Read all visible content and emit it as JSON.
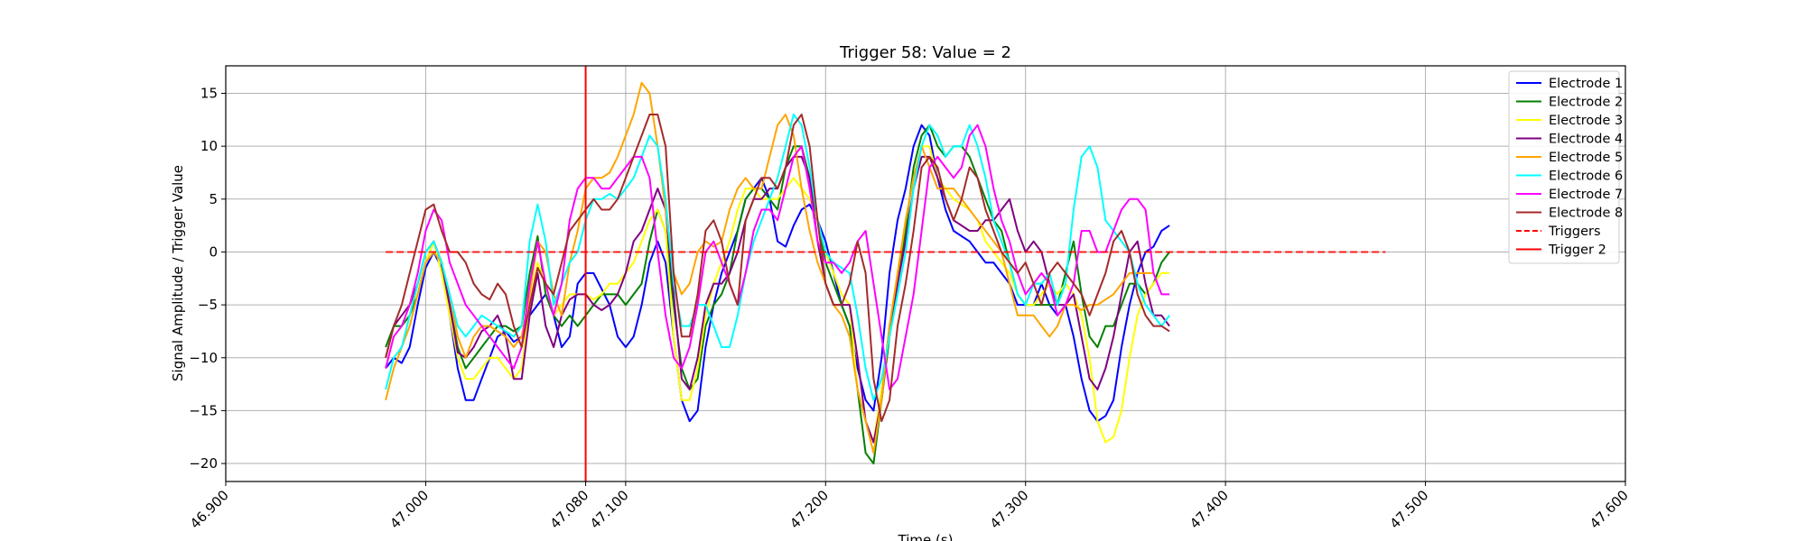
{
  "chart_data": {
    "type": "line",
    "title": "Trigger 58: Value = 2",
    "xlabel": "Time (s)",
    "ylabel": "Signal Amplitude / Trigger Value",
    "xlim": [
      46.9,
      47.6
    ],
    "ylim": [
      -21.7,
      17.6
    ],
    "x_ticks": [
      46.9,
      47.0,
      47.08,
      47.1,
      47.2,
      47.3,
      47.4,
      47.5,
      47.6
    ],
    "x_tick_labels": [
      "46.900",
      "47.000",
      "47.080",
      "47.100",
      "47.200",
      "47.300",
      "47.400",
      "47.500",
      "47.600"
    ],
    "y_ticks": [
      -20,
      -15,
      -10,
      -5,
      0,
      5,
      10,
      15
    ],
    "y_tick_labels": [
      "−20",
      "−15",
      "−10",
      "−5",
      "0",
      "5",
      "10",
      "15"
    ],
    "grid": true,
    "legend_position": "top-right",
    "x_start": 46.98,
    "x_step": 0.004,
    "series": [
      {
        "name": "Electrode 1",
        "color": "#0000ff",
        "style": "solid",
        "values": [
          -11,
          -10,
          -10.5,
          -9,
          -5,
          -1.5,
          0,
          -1.5,
          -6,
          -11,
          -14,
          -14,
          -12,
          -10,
          -8,
          -7.5,
          -8.5,
          -8,
          -6,
          -5,
          -4,
          -6,
          -9,
          -8,
          -3,
          -2,
          -2,
          -3.5,
          -5,
          -8,
          -9,
          -8,
          -5,
          -1,
          1,
          -1,
          -8,
          -14,
          -16,
          -15,
          -9,
          -5,
          -2,
          0,
          2,
          5,
          6,
          7,
          5,
          1,
          0.5,
          2.5,
          4,
          4.5,
          3,
          1,
          -2,
          -5,
          -7,
          -11,
          -14,
          -15,
          -10,
          -2,
          3,
          6,
          10,
          12,
          11,
          7,
          4,
          2,
          1.5,
          1,
          0,
          -1,
          -1,
          -2,
          -3,
          -5,
          -5,
          -5,
          -3,
          -5,
          -6,
          -5,
          -8,
          -12,
          -15,
          -16,
          -15.5,
          -14,
          -9,
          -5,
          -2,
          0,
          0.5,
          2,
          2.5
        ]
      },
      {
        "name": "Electrode 2",
        "color": "#008000",
        "style": "solid",
        "values": [
          -9,
          -7,
          -7,
          -6,
          -4,
          -1,
          1,
          -1,
          -5,
          -9,
          -11,
          -10,
          -9,
          -8,
          -7,
          -7,
          -7.5,
          -7,
          -2,
          1.5,
          -4,
          -6,
          -7,
          -6,
          -7,
          -6,
          -5,
          -4,
          -4,
          -4,
          -5,
          -4,
          -3,
          1,
          4,
          2,
          -5,
          -11,
          -13,
          -12,
          -7,
          -5,
          -4,
          -2,
          2,
          5,
          6,
          6,
          5,
          4,
          8,
          10,
          10,
          7,
          3,
          -1,
          -3,
          -5,
          -7,
          -13,
          -19,
          -20,
          -14,
          -8,
          -3,
          2,
          8,
          11,
          12,
          10,
          9,
          10,
          10,
          9,
          7,
          5,
          3,
          2,
          -1,
          -4,
          -5,
          -5,
          -5,
          -5,
          -5,
          -2,
          1,
          -4,
          -8,
          -9,
          -7,
          -7,
          -5,
          -3,
          -3,
          -4,
          -3,
          -1,
          0
        ]
      },
      {
        "name": "Electrode 3",
        "color": "#ffff00",
        "style": "solid",
        "values": [
          -11,
          -8,
          -7,
          -5,
          -4,
          -1,
          1,
          -2,
          -6,
          -10,
          -12,
          -12,
          -11,
          -10,
          -10,
          -11,
          -12,
          -11,
          -5,
          -1,
          -3,
          -6,
          -5,
          -4,
          -4,
          -4,
          -4.5,
          -4,
          -3,
          -3,
          -2,
          -1,
          1,
          3,
          4,
          2,
          -8,
          -14,
          -14,
          -11,
          -6,
          -3,
          -1,
          1,
          4,
          6,
          6,
          5,
          5,
          5,
          6,
          7,
          6,
          5,
          3,
          0,
          -2,
          -4,
          -5,
          -13,
          -16,
          -18,
          -13,
          -7,
          -2,
          3,
          7,
          10,
          10,
          7,
          6,
          5,
          4.5,
          4,
          3,
          1,
          0,
          -1,
          -2,
          -4,
          -5,
          -5,
          -4,
          -3,
          -4,
          -3,
          -4,
          -6,
          -10,
          -16,
          -18,
          -17.5,
          -15,
          -10,
          -6,
          -4,
          -3,
          -2,
          -2
        ]
      },
      {
        "name": "Electrode 4",
        "color": "#800080",
        "style": "solid",
        "values": [
          -10,
          -7,
          -6,
          -5,
          -3,
          0,
          1,
          -1,
          -5,
          -9.5,
          -10,
          -9,
          -7.5,
          -7,
          -6,
          -8,
          -12,
          -12,
          -6,
          -2,
          -7,
          -9,
          -6,
          -4.5,
          -4,
          -4,
          -5,
          -5.5,
          -5,
          -4,
          -2,
          1,
          2,
          4,
          6,
          4,
          -4,
          -12,
          -13,
          -10,
          -5,
          -3,
          -3,
          -2,
          0,
          3,
          5,
          5,
          6,
          6,
          8,
          9,
          9,
          7,
          1,
          -3,
          -5,
          -5,
          -5,
          -10,
          -16,
          -18,
          -14,
          -7,
          -3,
          1,
          6,
          9,
          9,
          7,
          5,
          3,
          2.5,
          2,
          2,
          3,
          3,
          4,
          5,
          2,
          0,
          1,
          0,
          -3,
          -5,
          -5,
          -4,
          -8,
          -12,
          -13,
          -11,
          -8,
          -4,
          0,
          1,
          -3,
          -6,
          -6,
          -7
        ]
      },
      {
        "name": "Electrode 5",
        "color": "#ffa500",
        "style": "solid",
        "values": [
          -14,
          -11,
          -9,
          -7,
          -4,
          -1,
          0,
          -1,
          -4,
          -8,
          -10,
          -8,
          -7,
          -7,
          -7.5,
          -8,
          -9,
          -8,
          -4,
          1,
          0,
          -4,
          -6,
          -1,
          2,
          6,
          7,
          7,
          7.5,
          9,
          11,
          13,
          16,
          15,
          10,
          4,
          -2,
          -4,
          -3,
          0,
          1,
          0.5,
          1,
          4,
          6,
          7,
          6,
          6,
          9,
          12,
          13,
          11,
          6,
          2,
          -1,
          -3,
          -5,
          -6,
          -8,
          -13,
          -16,
          -19,
          -14,
          -7,
          -2,
          3,
          7,
          10,
          8,
          6,
          6,
          6,
          5,
          4,
          3,
          2,
          1,
          0,
          -3,
          -6,
          -6,
          -6,
          -7,
          -8,
          -7,
          -5,
          -5,
          -5.5,
          -5,
          -5,
          -4.5,
          -4,
          -3,
          -2,
          -2,
          -2,
          -2
        ]
      },
      {
        "name": "Electrode 6",
        "color": "#00ffff",
        "style": "solid",
        "values": [
          -13,
          -10,
          -9,
          -6,
          -3,
          0,
          1,
          -1,
          -4,
          -7,
          -8,
          -7,
          -6,
          -6.5,
          -7,
          -7.5,
          -8,
          -7,
          1,
          4.5,
          1,
          -5,
          -3,
          -1,
          0,
          3,
          5,
          5,
          5.5,
          5,
          6,
          7,
          9,
          11,
          10,
          5,
          -3,
          -7,
          -7,
          -5,
          -5,
          -7,
          -9,
          -9,
          -6,
          -2,
          1,
          3,
          5,
          7,
          10,
          13,
          12,
          8,
          3,
          0,
          -1,
          -1.5,
          -2,
          -6,
          -11,
          -14,
          -12,
          -8,
          -4,
          0,
          6,
          10,
          12,
          11,
          9,
          10,
          10,
          12,
          10,
          7,
          3,
          1,
          -1,
          -4,
          -5,
          -3,
          -3,
          -2,
          -5,
          -3,
          4,
          9,
          10,
          8,
          3,
          2,
          1,
          0,
          -3,
          -5,
          -6,
          -7,
          -6
        ]
      },
      {
        "name": "Electrode 7",
        "color": "#ff00ff",
        "style": "solid",
        "values": [
          -11,
          -8,
          -7,
          -5,
          -2,
          2,
          4,
          3,
          -1,
          -3,
          -5,
          -6,
          -7,
          -8,
          -9,
          -10,
          -11,
          -9,
          -3,
          1,
          -3,
          -6,
          -3,
          3,
          6,
          7,
          7,
          6,
          6,
          7,
          8,
          9,
          9,
          7,
          0,
          -6,
          -10,
          -11,
          -9,
          -5,
          0,
          1,
          -1,
          -3,
          -5,
          -2,
          2,
          4,
          4,
          3,
          6,
          9,
          10,
          6,
          1,
          -1,
          -1,
          -2,
          -1,
          1,
          2,
          -3,
          -8,
          -13,
          -12,
          -8,
          -4,
          2,
          8,
          9,
          8,
          7,
          8,
          11,
          12,
          10,
          6,
          3,
          1,
          -2,
          -4,
          -3,
          -2,
          -3,
          -6,
          -5,
          -3,
          2,
          2,
          0,
          0,
          2,
          4,
          5,
          5,
          4,
          -2,
          -4,
          -4
        ]
      },
      {
        "name": "Electrode 8",
        "color": "#a52a2a",
        "style": "solid",
        "values": [
          -10,
          -7,
          -5,
          -2,
          1,
          4,
          4.5,
          2,
          0,
          0,
          -1,
          -3,
          -4,
          -4.5,
          -3,
          -4,
          -7,
          -9,
          -5,
          -1.5,
          -3,
          -4,
          -1,
          2,
          3,
          4,
          5,
          4,
          4,
          5,
          7,
          9,
          11,
          13,
          13,
          10,
          -2,
          -8,
          -8,
          -4,
          2,
          3,
          1,
          -3,
          -5,
          3,
          5,
          7,
          7,
          6,
          8,
          12,
          13,
          10,
          3,
          -3,
          -5,
          -5,
          -3,
          1,
          -2,
          -12,
          -16,
          -14,
          -7,
          -3,
          2,
          8,
          9,
          8,
          5,
          3,
          5,
          8,
          7,
          4,
          2,
          0,
          -1,
          -2,
          -1,
          -3,
          -5,
          -2,
          -1,
          -2,
          -3,
          -4,
          -6,
          -4,
          -2,
          1,
          2,
          0,
          -4,
          -6,
          -7,
          -7,
          -7.5
        ]
      },
      {
        "name": "Triggers",
        "color": "#ff0000",
        "style": "dashed",
        "x_range": [
          46.98,
          47.48
        ],
        "constant": 0
      },
      {
        "name": "Trigger 2",
        "color": "#ff0000",
        "style": "vline",
        "x": 47.08
      }
    ]
  }
}
